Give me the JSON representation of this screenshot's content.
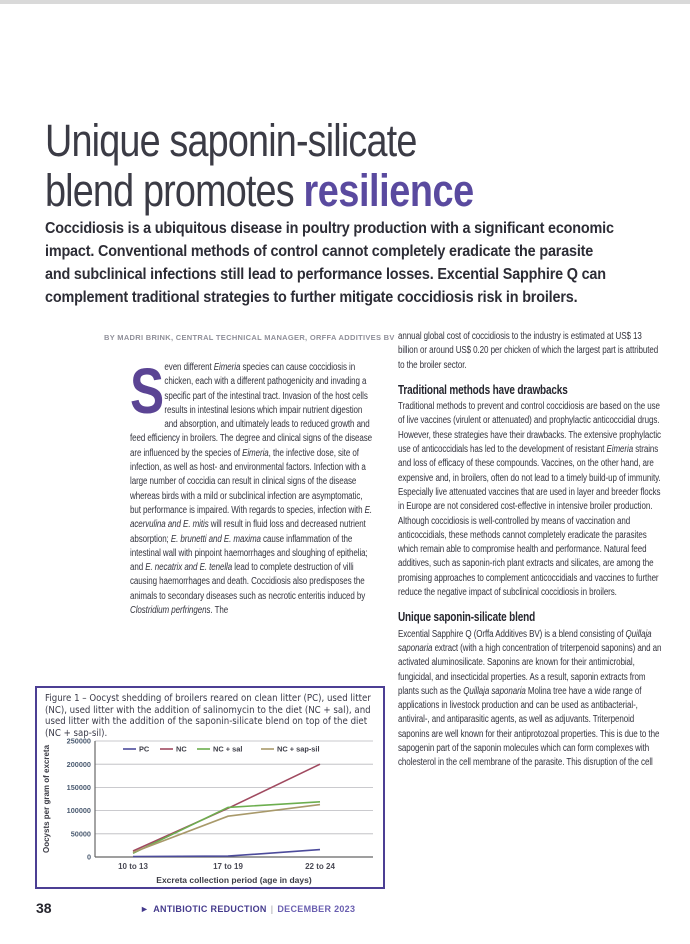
{
  "header": {
    "title_line1": "Unique saponin-silicate",
    "title_line2": "blend promotes ",
    "title_accent": "resilience"
  },
  "intro": "Coccidiosis is a ubiquitous disease in poultry production with a significant economic impact. Conventional methods of control cannot completely eradicate the parasite and subclinical infections still lead to performance losses. Excential Sapphire Q can complement traditional strategies to further mitigate coccidiosis risk in broilers.",
  "byline": "BY MADRI BRINK, CENTRAL TECHNICAL MANAGER, ORFFA ADDITIVES BV",
  "left_column": {
    "dropcap": "S",
    "paragraph": "even different *Eimeria* species can cause coccidiosis in chicken, each with a different pathogenicity and invading a specific part of the intestinal tract. Invasion of the host cells results in intestinal lesions which impair nutrient digestion and absorption, and ultimately leads to reduced growth and feed efficiency in broilers. The degree and clinical signs of the disease are influenced by the species of *Eimeria*, the infective dose, site of infection, as well as host- and environmental factors. Infection with a large number of coccidia can result in clinical signs of the disease whereas birds with a mild or subclinical infection are asymptomatic, but performance is impaired. With regards to species, infection with *E. acervulina and E. mitis* will result in fluid loss and decreased nutrient absorption; *E. brunetti and E. maxima* cause inflammation of the intestinal wall with pinpoint haemorrhages and sloughing of epithelia; and *E. necatrix and E. tenella* lead to complete destruction of villi causing haemorrhages and death. Coccidiosis also predisposes the animals to secondary diseases such as necrotic enteritis induced by *Clostridium perfringens*. The"
  },
  "right_column": {
    "paragraph1": "annual global cost of coccidiosis to the industry is estimated at US$ 13 billion or around US$ 0.20 per chicken of which the largest part is attributed to the broiler sector.",
    "heading1": "Traditional methods have drawbacks",
    "paragraph2": "Traditional methods to prevent and control coccidiosis are based on the use of live vaccines (virulent or attenuated) and prophylactic anticoccidial drugs. However, these strategies have their drawbacks. The extensive prophylactic use of anticoccidials has led to the development of resistant *Eimeria* strains and loss of efficacy of these compounds. Vaccines, on the other hand, are expensive and, in broilers, often do not lead to a timely build-up of immunity. Especially live attenuated vaccines that are used in layer and breeder flocks in Europe are not considered cost-effective in intensive broiler production. Although coccidiosis is well-controlled by means of vaccination and anticoccidials, these methods cannot completely eradicate the parasites which remain able to compromise health and performance. Natural feed additives, such as saponin-rich plant extracts and silicates, are among the promising approaches to complement anticoccidials and vaccines to further reduce the negative impact of subclinical coccidiosis in broilers.",
    "heading2": "Unique saponin-silicate blend",
    "paragraph3": "Excential Sapphire Q (Orffa Additives BV) is a blend consisting of *Quillaja saponaria* extract (with a high concentration of triterpenoid saponins) and an activated aluminosilicate. Saponins are known for their antimicrobial, fungicidal, and insecticidal properties. As a result, saponin extracts from plants such as the *Quillaja saponaria* Molina tree have a wide range of applications in livestock production and can be used as antibacterial-, antiviral-, and antiparasitic agents, as well as adjuvants. Triterpenoid saponins are well known for their antiprotozoal properties. This is due to the sapogenin part of the saponin molecules which can form complexes with cholesterol in the cell membrane of the parasite. This disruption of the cell"
  },
  "figure": {
    "caption": "Figure 1 – Oocyst shedding of broilers reared on clean litter (PC), used litter (NC), used litter with the addition of salinomycin to the diet (NC + sal), and used litter with the addition of the saponin-silicate blend on top of the diet (NC + sap-sil)."
  },
  "chart_data": {
    "type": "line",
    "categories": [
      "10 to 13",
      "17 to 19",
      "22 to 24"
    ],
    "series": [
      {
        "name": "PC",
        "color": "#4c4b9b",
        "values": [
          1000,
          2000,
          16000
        ]
      },
      {
        "name": "NC",
        "color": "#a04a60",
        "values": [
          13000,
          105000,
          200000
        ]
      },
      {
        "name": "NC + sal",
        "color": "#6cae4e",
        "values": [
          8000,
          107000,
          119000
        ]
      },
      {
        "name": "NC + sap-sil",
        "color": "#a8996a",
        "values": [
          10000,
          88000,
          113000
        ]
      }
    ],
    "title": "",
    "xlabel": "Excreta collection period (age in days)",
    "ylabel": "Oocysts per gram of excreta",
    "ylim": [
      0,
      250000
    ],
    "yticks": [
      0,
      50000,
      100000,
      150000,
      200000,
      250000
    ],
    "grid": true,
    "legend_position": "top-inside"
  },
  "footer": {
    "page_number": "38",
    "arrow": "►",
    "section": "ANTIBIOTIC REDUCTION",
    "separator": "|",
    "date": "DECEMBER 2023"
  },
  "colors": {
    "accent_purple": "#5a4a9f",
    "dropcap_purple": "#5b4494",
    "figure_border": "#4c3f94",
    "footer_purple": "#443a8c",
    "topbar_gray": "#d9d9d9"
  }
}
